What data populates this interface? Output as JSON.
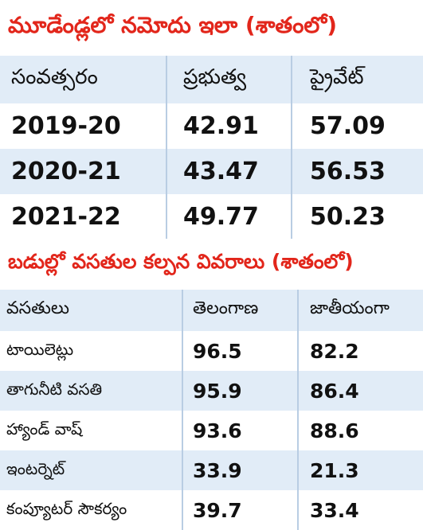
{
  "section1": {
    "title": "మూడేండ్లలో నమోదు ఇలా (శాతంలో)",
    "headers": [
      "సంవత్సరం",
      "ప్రభుత్వ",
      "ప్రైవేట్"
    ],
    "rows": [
      [
        "2019-20",
        "42.91",
        "57.09"
      ],
      [
        "2020-21",
        "43.47",
        "56.53"
      ],
      [
        "2021-22",
        "49.77",
        "50.23"
      ]
    ]
  },
  "section2": {
    "title": "బడుల్లో వసతుల కల్పన వివరాలు (శాతంలో)",
    "headers": [
      "వసతులు",
      "తెలంగాణ",
      "జాతీయంగా"
    ],
    "rows": [
      [
        "టాయిలెట్లు",
        "96.5",
        "82.2"
      ],
      [
        "తాగునీటి వసతి",
        "95.9",
        "86.4"
      ],
      [
        "హ్యాండ్ వాష్",
        "93.6",
        "88.6"
      ],
      [
        "ఇంటర్నెట్",
        "33.9",
        "21.3"
      ],
      [
        "కంప్యూటర్ సౌకర్యం",
        "39.7",
        "33.4"
      ]
    ]
  },
  "colors": {
    "title_red": "#e2261b",
    "band_blue": "#e1ecf7",
    "divider": "#b9cde3"
  }
}
